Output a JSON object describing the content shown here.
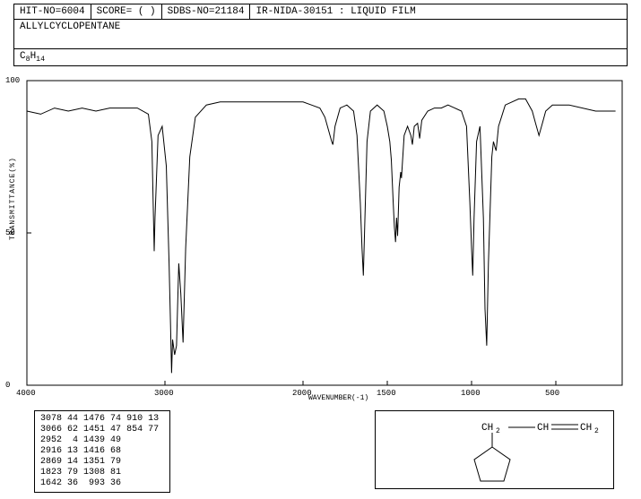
{
  "header": {
    "hit_no": "HIT-NO=6004",
    "score": "SCORE=  (  )",
    "sdbs_no": "SDBS-NO=21184",
    "ir_info": "IR-NIDA-30151 : LIQUID FILM"
  },
  "compound_name": "ALLYLCYCLOPENTANE",
  "formula_html": "C<sub>8</sub>H<sub>14</sub>",
  "chart": {
    "type": "line",
    "xlabel": "WAVENUMBER(-1)",
    "ylabel": "TRANSMITTANCE(%)",
    "xlim": [
      4000,
      400
    ],
    "ylim": [
      0,
      100
    ],
    "xticks": [
      4000,
      3000,
      2000,
      1500,
      1000,
      500
    ],
    "yticks": [
      0,
      50,
      100
    ],
    "line_color": "#000000",
    "background_color": "#ffffff",
    "line_width": 1,
    "points": [
      [
        4000,
        90
      ],
      [
        3900,
        89
      ],
      [
        3800,
        91
      ],
      [
        3700,
        90
      ],
      [
        3600,
        91
      ],
      [
        3500,
        90
      ],
      [
        3400,
        91
      ],
      [
        3300,
        91
      ],
      [
        3200,
        91
      ],
      [
        3120,
        89
      ],
      [
        3095,
        80
      ],
      [
        3078,
        44
      ],
      [
        3072,
        55
      ],
      [
        3066,
        62
      ],
      [
        3050,
        82
      ],
      [
        3020,
        85
      ],
      [
        2990,
        72
      ],
      [
        2970,
        40
      ],
      [
        2960,
        20
      ],
      [
        2952,
        4
      ],
      [
        2945,
        15
      ],
      [
        2930,
        10
      ],
      [
        2916,
        13
      ],
      [
        2900,
        40
      ],
      [
        2885,
        30
      ],
      [
        2869,
        14
      ],
      [
        2850,
        45
      ],
      [
        2820,
        75
      ],
      [
        2780,
        88
      ],
      [
        2700,
        92
      ],
      [
        2600,
        93
      ],
      [
        2500,
        93
      ],
      [
        2400,
        93
      ],
      [
        2300,
        93
      ],
      [
        2200,
        93
      ],
      [
        2100,
        93
      ],
      [
        2000,
        93
      ],
      [
        1950,
        92
      ],
      [
        1900,
        91
      ],
      [
        1870,
        88
      ],
      [
        1850,
        84
      ],
      [
        1830,
        80
      ],
      [
        1823,
        79
      ],
      [
        1810,
        85
      ],
      [
        1780,
        91
      ],
      [
        1740,
        92
      ],
      [
        1700,
        90
      ],
      [
        1680,
        82
      ],
      [
        1660,
        60
      ],
      [
        1650,
        45
      ],
      [
        1642,
        36
      ],
      [
        1635,
        50
      ],
      [
        1620,
        80
      ],
      [
        1600,
        90
      ],
      [
        1560,
        92
      ],
      [
        1520,
        90
      ],
      [
        1500,
        85
      ],
      [
        1485,
        80
      ],
      [
        1476,
        74
      ],
      [
        1465,
        60
      ],
      [
        1458,
        52
      ],
      [
        1451,
        47
      ],
      [
        1445,
        55
      ],
      [
        1439,
        49
      ],
      [
        1430,
        65
      ],
      [
        1420,
        70
      ],
      [
        1416,
        68
      ],
      [
        1400,
        82
      ],
      [
        1380,
        85
      ],
      [
        1360,
        82
      ],
      [
        1351,
        79
      ],
      [
        1340,
        85
      ],
      [
        1320,
        86
      ],
      [
        1308,
        81
      ],
      [
        1295,
        87
      ],
      [
        1260,
        90
      ],
      [
        1220,
        91
      ],
      [
        1180,
        91
      ],
      [
        1140,
        92
      ],
      [
        1100,
        91
      ],
      [
        1060,
        90
      ],
      [
        1030,
        85
      ],
      [
        1010,
        60
      ],
      [
        1000,
        45
      ],
      [
        993,
        36
      ],
      [
        985,
        55
      ],
      [
        970,
        80
      ],
      [
        950,
        85
      ],
      [
        930,
        55
      ],
      [
        920,
        25
      ],
      [
        910,
        13
      ],
      [
        900,
        40
      ],
      [
        880,
        75
      ],
      [
        870,
        80
      ],
      [
        860,
        78
      ],
      [
        854,
        77
      ],
      [
        840,
        85
      ],
      [
        800,
        92
      ],
      [
        760,
        93
      ],
      [
        720,
        94
      ],
      [
        680,
        94
      ],
      [
        640,
        90
      ],
      [
        620,
        86
      ],
      [
        600,
        82
      ],
      [
        580,
        86
      ],
      [
        560,
        90
      ],
      [
        520,
        92
      ],
      [
        480,
        92
      ],
      [
        440,
        90
      ],
      [
        410,
        90
      ]
    ]
  },
  "peak_table": {
    "rows": [
      [
        "3078",
        "44",
        "1476",
        "74",
        "910",
        "13"
      ],
      [
        "3066",
        "62",
        "1451",
        "47",
        "854",
        "77"
      ],
      [
        "2952",
        "4",
        "1439",
        "49",
        "",
        ""
      ],
      [
        "2916",
        "13",
        "1416",
        "68",
        "",
        ""
      ],
      [
        "2869",
        "14",
        "1351",
        "79",
        "",
        ""
      ],
      [
        "1823",
        "79",
        "1308",
        "81",
        "",
        ""
      ],
      [
        "1642",
        "36",
        "993",
        "36",
        "",
        ""
      ]
    ]
  },
  "structure": {
    "ch2_labels": [
      "CH",
      "2",
      "CH",
      "CH",
      "2"
    ],
    "stroke": "#000000"
  }
}
